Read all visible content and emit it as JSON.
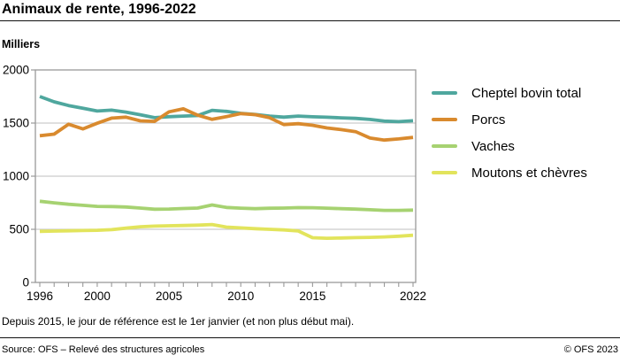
{
  "header": {
    "title": "Animaux de rente, 1996-2022"
  },
  "chart_data": {
    "type": "line",
    "title": "Animaux de rente, 1996-2022",
    "ylabel": "Milliers",
    "xlabel": "",
    "ylim": [
      0,
      2000
    ],
    "y_ticks": [
      0,
      500,
      1000,
      1500,
      2000
    ],
    "x_tick_labels": [
      1996,
      2000,
      2005,
      2010,
      2015,
      2022
    ],
    "grid": true,
    "legend_position": "right",
    "x": [
      1996,
      1997,
      1998,
      1999,
      2000,
      2001,
      2002,
      2003,
      2004,
      2005,
      2006,
      2007,
      2008,
      2009,
      2010,
      2011,
      2012,
      2013,
      2014,
      2015,
      2016,
      2017,
      2018,
      2019,
      2020,
      2021,
      2022
    ],
    "series": [
      {
        "name": "Cheptel bovin total",
        "color": "#4FA79E",
        "values": [
          1750,
          1700,
          1665,
          1640,
          1613,
          1622,
          1603,
          1578,
          1551,
          1560,
          1566,
          1571,
          1620,
          1610,
          1592,
          1581,
          1566,
          1556,
          1566,
          1559,
          1555,
          1549,
          1544,
          1534,
          1518,
          1513,
          1522
        ]
      },
      {
        "name": "Porcs",
        "color": "#D98A2E",
        "values": [
          1381,
          1396,
          1489,
          1445,
          1498,
          1547,
          1556,
          1521,
          1516,
          1606,
          1634,
          1574,
          1535,
          1561,
          1589,
          1579,
          1551,
          1486,
          1494,
          1479,
          1454,
          1438,
          1419,
          1359,
          1340,
          1351,
          1365
        ]
      },
      {
        "name": "Vaches",
        "color": "#A6D271",
        "values": [
          764,
          749,
          736,
          726,
          716,
          714,
          710,
          700,
          689,
          691,
          696,
          700,
          729,
          706,
          699,
          694,
          698,
          700,
          704,
          703,
          699,
          694,
          690,
          684,
          678,
          678,
          681
        ]
      },
      {
        "name": "Moutons et chèvres",
        "color": "#E2E45C",
        "values": [
          481,
          483,
          486,
          488,
          491,
          497,
          511,
          524,
          530,
          533,
          536,
          539,
          545,
          521,
          513,
          506,
          500,
          494,
          484,
          421,
          416,
          418,
          422,
          424,
          428,
          435,
          444
        ]
      }
    ]
  },
  "footer": {
    "note": "Depuis 2015, le jour de référence est le 1er janvier (et non plus début mai).",
    "source": "Source: OFS – Relevé des structures agricoles",
    "copyright": "© OFS 2023"
  },
  "colors": {
    "axis": "#999999",
    "grid": "#CCCCCC",
    "text": "#000000",
    "background": "#FFFFFF"
  }
}
